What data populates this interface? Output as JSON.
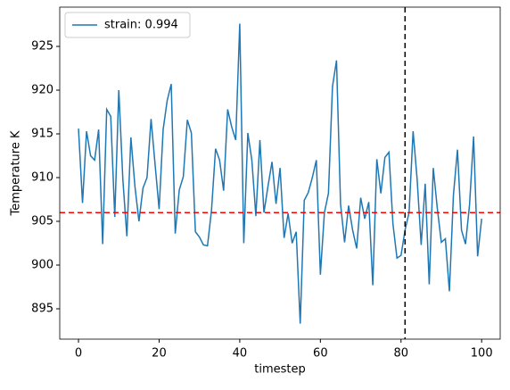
{
  "chart_data": {
    "type": "line",
    "xlabel": "timestep",
    "ylabel": "Temperature K",
    "x": [
      0,
      1,
      2,
      3,
      4,
      5,
      6,
      7,
      8,
      9,
      10,
      11,
      12,
      13,
      14,
      15,
      16,
      17,
      18,
      19,
      20,
      21,
      22,
      23,
      24,
      25,
      26,
      27,
      28,
      29,
      30,
      31,
      32,
      33,
      34,
      35,
      36,
      37,
      38,
      39,
      40,
      41,
      42,
      43,
      44,
      45,
      46,
      47,
      48,
      49,
      50,
      51,
      52,
      53,
      54,
      55,
      56,
      57,
      58,
      59,
      60,
      61,
      62,
      63,
      64,
      65,
      66,
      67,
      68,
      69,
      70,
      71,
      72,
      73,
      74,
      75,
      76,
      77,
      78,
      79,
      80,
      81,
      82,
      83,
      84,
      85,
      86,
      87,
      88,
      89,
      90,
      91,
      92,
      93,
      94,
      95,
      96,
      97,
      98,
      99,
      100
    ],
    "series": [
      {
        "name": "strain: 0.994",
        "color": "#1f77b4",
        "values": [
          915.6,
          907.1,
          915.3,
          912.5,
          912.0,
          915.5,
          902.4,
          917.8,
          917.0,
          905.5,
          920.0,
          909.8,
          903.3,
          914.6,
          909.0,
          905.0,
          908.8,
          910.0,
          916.7,
          911.5,
          906.4,
          915.5,
          918.8,
          920.7,
          903.6,
          908.6,
          910.1,
          916.6,
          915.1,
          903.8,
          903.2,
          902.3,
          902.2,
          906.3,
          913.3,
          912.0,
          908.5,
          917.8,
          915.8,
          914.3,
          927.6,
          902.5,
          915.1,
          912.0,
          905.6,
          914.3,
          906.0,
          909.0,
          911.8,
          907.0,
          911.1,
          903.1,
          905.9,
          902.5,
          903.8,
          893.3,
          907.4,
          908.3,
          910.0,
          912.0,
          898.9,
          906.0,
          908.2,
          920.4,
          923.4,
          907.0,
          902.6,
          906.8,
          904.0,
          901.9,
          907.7,
          905.3,
          907.2,
          897.7,
          912.1,
          908.2,
          912.3,
          912.9,
          904.7,
          900.8,
          901.1,
          904.0,
          906.0,
          915.3,
          909.8,
          902.3,
          909.3,
          897.8,
          911.1,
          906.5,
          902.6,
          903.0,
          897.0,
          908.0,
          913.2,
          904.0,
          902.4,
          906.9,
          914.7,
          901.0,
          905.3
        ]
      }
    ],
    "hline": {
      "value": 906,
      "color": "#ff0000"
    },
    "vline": {
      "value": 81,
      "color": "#000000"
    },
    "xlim": [
      -4.65,
      104.6
    ],
    "xticks": [
      0,
      20,
      40,
      60,
      80,
      100
    ],
    "ylim": [
      891.53,
      929.49
    ],
    "yticks": [
      895,
      900,
      905,
      910,
      915,
      920,
      925
    ],
    "legend": "upper left",
    "grid": false
  }
}
